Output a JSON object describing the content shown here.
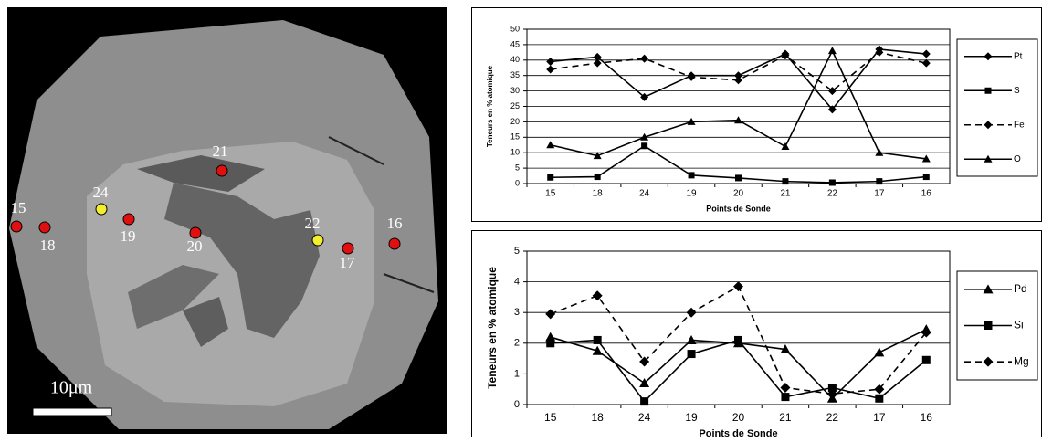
{
  "micrograph": {
    "scale_label": "10μm",
    "points": [
      {
        "label": "15",
        "color": "#e01010"
      },
      {
        "label": "18",
        "color": "#e01010"
      },
      {
        "label": "24",
        "color": "#f2ee30"
      },
      {
        "label": "19",
        "color": "#e01010"
      },
      {
        "label": "20",
        "color": "#e01010"
      },
      {
        "label": "21",
        "color": "#e01010"
      },
      {
        "label": "22",
        "color": "#f2ee30"
      },
      {
        "label": "17",
        "color": "#e01010"
      },
      {
        "label": "16",
        "color": "#e01010"
      }
    ]
  },
  "chart_data": [
    {
      "type": "line",
      "x_label": "Points de Sonde",
      "y_label": "Teneurs en % atomique",
      "categories": [
        "15",
        "18",
        "24",
        "19",
        "20",
        "21",
        "22",
        "17",
        "16"
      ],
      "ylim": [
        0,
        50
      ],
      "yticks": [
        0,
        5,
        10,
        15,
        20,
        25,
        30,
        35,
        40,
        45,
        50
      ],
      "grid": true,
      "legend": "right",
      "series": [
        {
          "name": "Pt",
          "color": "#000000",
          "marker": "diamond",
          "dashed": false,
          "values": [
            39.5,
            41,
            28,
            35,
            35,
            42,
            24,
            43.5,
            42
          ]
        },
        {
          "name": "S",
          "color": "#000000",
          "marker": "square",
          "dashed": false,
          "values": [
            2,
            2.2,
            12.2,
            2.7,
            1.8,
            0.7,
            0.3,
            0.7,
            2.2
          ]
        },
        {
          "name": "Fe",
          "color": "#000000",
          "marker": "diamond",
          "dashed": true,
          "values": [
            37,
            39,
            40.5,
            34.5,
            33.5,
            41.5,
            30,
            42.5,
            39
          ]
        },
        {
          "name": "O",
          "color": "#000000",
          "marker": "triangle",
          "dashed": false,
          "values": [
            12.5,
            9,
            15,
            20,
            20.5,
            12,
            43,
            10,
            8
          ]
        }
      ]
    },
    {
      "type": "line",
      "x_label": "Points de Sonde",
      "y_label": "Teneurs en % atomique",
      "categories": [
        "15",
        "18",
        "24",
        "19",
        "20",
        "21",
        "22",
        "17",
        "16"
      ],
      "ylim": [
        0,
        5
      ],
      "yticks": [
        0,
        1,
        2,
        3,
        4,
        5
      ],
      "grid": true,
      "legend": "right",
      "series": [
        {
          "name": "Pd",
          "color": "#000000",
          "marker": "triangle",
          "dashed": false,
          "values": [
            2.2,
            1.75,
            0.7,
            2.1,
            2.0,
            1.8,
            0.2,
            1.7,
            2.45
          ]
        },
        {
          "name": "Si",
          "color": "#000000",
          "marker": "square",
          "dashed": false,
          "values": [
            2.0,
            2.1,
            0.1,
            1.65,
            2.1,
            0.25,
            0.55,
            0.2,
            1.45
          ]
        },
        {
          "name": "Mg",
          "color": "#000000",
          "marker": "diamond",
          "dashed": true,
          "values": [
            2.95,
            3.55,
            1.4,
            3.0,
            3.85,
            0.55,
            0.35,
            0.5,
            2.35
          ]
        }
      ]
    }
  ]
}
